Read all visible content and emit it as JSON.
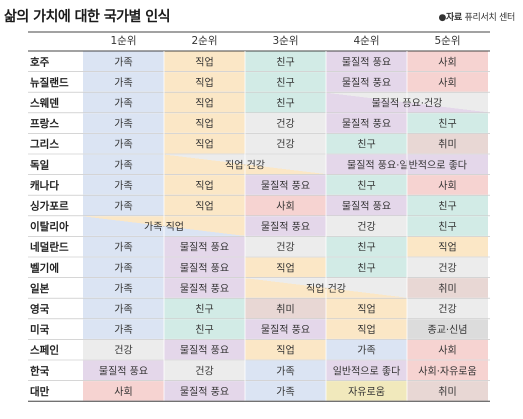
{
  "title": "삶의 가치에 대한 국가별 인식",
  "source": {
    "bullet": "●",
    "label": "자료",
    "name": "퓨리서치 센터"
  },
  "colors": {
    "가족": "#dbe4f3",
    "직업": "#fbe7c6",
    "친구": "#d2ebe6",
    "물질적 풍요": "#e4d7ea",
    "사회": "#f6d3d1",
    "건강": "#ececec",
    "취미": "#e8d7d4",
    "자유로움": "#f1e9bc",
    "종교·신념": "#dcdcdc",
    "일반적으로 좋다": "#e4d7ea",
    "사회·자유로움": "#f6d3d1"
  },
  "chart_data": {
    "type": "table",
    "title": "삶의 가치에 대한 국가별 인식",
    "columns": [
      "1순위",
      "2순위",
      "3순위",
      "4순위",
      "5순위"
    ],
    "rows": [
      {
        "country": "호주",
        "cells": [
          {
            "text": "가족",
            "span": 1,
            "c": "가족"
          },
          {
            "text": "직업",
            "span": 1,
            "c": "직업"
          },
          {
            "text": "친구",
            "span": 1,
            "c": "친구"
          },
          {
            "text": "물질적 풍요",
            "span": 1,
            "c": "물질적 풍요"
          },
          {
            "text": "사회",
            "span": 1,
            "c": "사회"
          }
        ]
      },
      {
        "country": "뉴질랜드",
        "cells": [
          {
            "text": "가족",
            "span": 1,
            "c": "가족"
          },
          {
            "text": "직업",
            "span": 1,
            "c": "직업"
          },
          {
            "text": "친구",
            "span": 1,
            "c": "친구"
          },
          {
            "text": "물질적 풍요",
            "span": 1,
            "c": "물질적 풍요"
          },
          {
            "text": "사회",
            "span": 1,
            "c": "사회"
          }
        ]
      },
      {
        "country": "스웨덴",
        "cells": [
          {
            "text": "가족",
            "span": 1,
            "c": "가족"
          },
          {
            "text": "직업",
            "span": 1,
            "c": "직업"
          },
          {
            "text": "친구",
            "span": 1,
            "c": "친구"
          },
          {
            "text": "물질적 풍요·건강",
            "span": 2,
            "c": "물질적 풍요",
            "c2": "건강"
          }
        ]
      },
      {
        "country": "프랑스",
        "cells": [
          {
            "text": "가족",
            "span": 1,
            "c": "가족"
          },
          {
            "text": "직업",
            "span": 1,
            "c": "직업"
          },
          {
            "text": "건강",
            "span": 1,
            "c": "건강"
          },
          {
            "text": "물질적 풍요",
            "span": 1,
            "c": "물질적 풍요"
          },
          {
            "text": "친구",
            "span": 1,
            "c": "친구"
          }
        ]
      },
      {
        "country": "그리스",
        "cells": [
          {
            "text": "가족",
            "span": 1,
            "c": "가족"
          },
          {
            "text": "직업",
            "span": 1,
            "c": "직업"
          },
          {
            "text": "건강",
            "span": 1,
            "c": "건강"
          },
          {
            "text": "친구",
            "span": 1,
            "c": "친구"
          },
          {
            "text": "취미",
            "span": 1,
            "c": "취미"
          }
        ]
      },
      {
        "country": "독일",
        "cells": [
          {
            "text": "가족",
            "span": 1,
            "c": "가족"
          },
          {
            "text": "직업·건강",
            "span": 2,
            "c": "직업",
            "c2": "건강"
          },
          {
            "text": "물질적 풍요·일반적으로 좋다",
            "span": 2,
            "c": "물질적 풍요",
            "c2": "일반적으로 좋다"
          }
        ]
      },
      {
        "country": "캐나다",
        "cells": [
          {
            "text": "가족",
            "span": 1,
            "c": "가족"
          },
          {
            "text": "직업",
            "span": 1,
            "c": "직업"
          },
          {
            "text": "물질적 풍요",
            "span": 1,
            "c": "물질적 풍요"
          },
          {
            "text": "친구",
            "span": 1,
            "c": "친구"
          },
          {
            "text": "사회",
            "span": 1,
            "c": "사회"
          }
        ]
      },
      {
        "country": "싱가포르",
        "cells": [
          {
            "text": "가족",
            "span": 1,
            "c": "가족"
          },
          {
            "text": "직업",
            "span": 1,
            "c": "직업"
          },
          {
            "text": "사회",
            "span": 1,
            "c": "사회"
          },
          {
            "text": "물질적 풍요",
            "span": 1,
            "c": "물질적 풍요"
          },
          {
            "text": "친구",
            "span": 1,
            "c": "친구"
          }
        ]
      },
      {
        "country": "이탈리아",
        "cells": [
          {
            "text": "가족·직업",
            "span": 2,
            "c": "가족",
            "c2": "직업"
          },
          {
            "text": "물질적 풍요",
            "span": 1,
            "c": "물질적 풍요"
          },
          {
            "text": "건강",
            "span": 1,
            "c": "건강"
          },
          {
            "text": "친구",
            "span": 1,
            "c": "친구"
          }
        ]
      },
      {
        "country": "네덜란드",
        "cells": [
          {
            "text": "가족",
            "span": 1,
            "c": "가족"
          },
          {
            "text": "물질적 풍요",
            "span": 1,
            "c": "물질적 풍요"
          },
          {
            "text": "건강",
            "span": 1,
            "c": "건강"
          },
          {
            "text": "친구",
            "span": 1,
            "c": "친구"
          },
          {
            "text": "직업",
            "span": 1,
            "c": "직업"
          }
        ]
      },
      {
        "country": "벨기에",
        "cells": [
          {
            "text": "가족",
            "span": 1,
            "c": "가족"
          },
          {
            "text": "물질적 풍요",
            "span": 1,
            "c": "물질적 풍요"
          },
          {
            "text": "직업",
            "span": 1,
            "c": "직업"
          },
          {
            "text": "친구",
            "span": 1,
            "c": "친구"
          },
          {
            "text": "건강",
            "span": 1,
            "c": "건강"
          }
        ]
      },
      {
        "country": "일본",
        "cells": [
          {
            "text": "가족",
            "span": 1,
            "c": "가족"
          },
          {
            "text": "물질적 풍요",
            "span": 1,
            "c": "물질적 풍요"
          },
          {
            "text": "직업·건강",
            "span": 2,
            "c": "직업",
            "c2": "건강"
          },
          {
            "text": "취미",
            "span": 1,
            "c": "취미"
          }
        ]
      },
      {
        "country": "영국",
        "cells": [
          {
            "text": "가족",
            "span": 1,
            "c": "가족"
          },
          {
            "text": "친구",
            "span": 1,
            "c": "친구"
          },
          {
            "text": "취미",
            "span": 1,
            "c": "취미"
          },
          {
            "text": "직업",
            "span": 1,
            "c": "직업"
          },
          {
            "text": "건강",
            "span": 1,
            "c": "건강"
          }
        ]
      },
      {
        "country": "미국",
        "cells": [
          {
            "text": "가족",
            "span": 1,
            "c": "가족"
          },
          {
            "text": "친구",
            "span": 1,
            "c": "친구"
          },
          {
            "text": "물질적 풍요",
            "span": 1,
            "c": "물질적 풍요"
          },
          {
            "text": "직업",
            "span": 1,
            "c": "직업"
          },
          {
            "text": "종교·신념",
            "span": 1,
            "c": "종교·신념"
          }
        ]
      },
      {
        "country": "스페인",
        "cells": [
          {
            "text": "건강",
            "span": 1,
            "c": "건강"
          },
          {
            "text": "물질적 풍요",
            "span": 1,
            "c": "물질적 풍요"
          },
          {
            "text": "직업",
            "span": 1,
            "c": "직업"
          },
          {
            "text": "가족",
            "span": 1,
            "c": "가족"
          },
          {
            "text": "사회",
            "span": 1,
            "c": "사회"
          }
        ]
      },
      {
        "country": "한국",
        "cells": [
          {
            "text": "물질적 풍요",
            "span": 1,
            "c": "물질적 풍요"
          },
          {
            "text": "건강",
            "span": 1,
            "c": "건강"
          },
          {
            "text": "가족",
            "span": 1,
            "c": "가족"
          },
          {
            "text": "일반적으로 좋다",
            "span": 1,
            "c": "일반적으로 좋다"
          },
          {
            "text": "사회·자유로움",
            "span": 1,
            "c": "사회·자유로움"
          }
        ]
      },
      {
        "country": "대만",
        "cells": [
          {
            "text": "사회",
            "span": 1,
            "c": "사회"
          },
          {
            "text": "물질적 풍요",
            "span": 1,
            "c": "물질적 풍요"
          },
          {
            "text": "가족",
            "span": 1,
            "c": "가족"
          },
          {
            "text": "자유로움",
            "span": 1,
            "c": "자유로움"
          },
          {
            "text": "취미",
            "span": 1,
            "c": "취미"
          }
        ]
      }
    ]
  }
}
